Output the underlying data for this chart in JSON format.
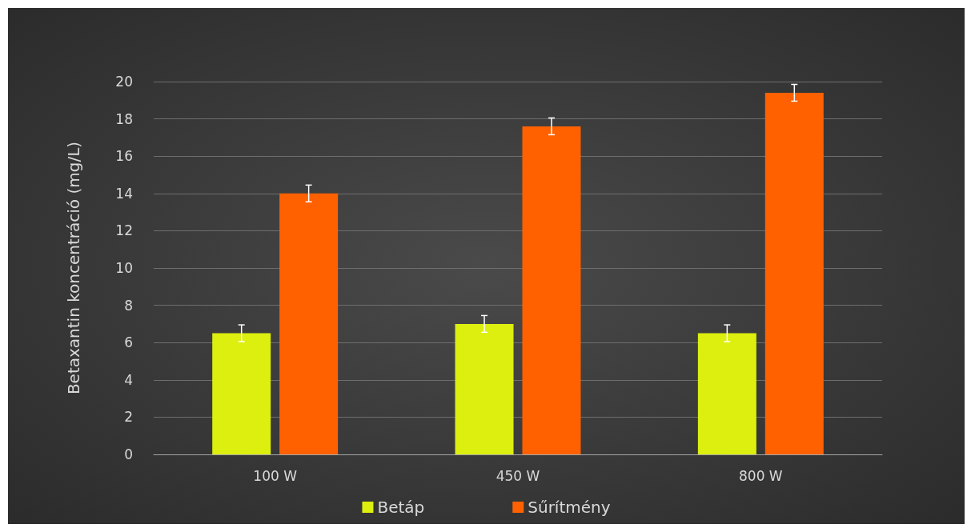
{
  "chart_data": {
    "type": "bar",
    "ylabel": "Betaxantin koncentráció (mg/L)",
    "categories": [
      "100 W",
      "450 W",
      "800 W"
    ],
    "series": [
      {
        "name": "Betáp",
        "color": "#dcef0e",
        "values": [
          6.5,
          7.0,
          6.5
        ],
        "errors": [
          0.45,
          0.45,
          0.45
        ]
      },
      {
        "name": "Sűrítmény",
        "color": "#ff6100",
        "values": [
          14.0,
          17.6,
          19.4
        ],
        "errors": [
          0.45,
          0.45,
          0.45
        ]
      }
    ],
    "ylim": [
      0,
      20
    ],
    "yticks": [
      0,
      2,
      4,
      6,
      8,
      10,
      12,
      14,
      16,
      18,
      20
    ],
    "grid": "y",
    "legend": "bottom"
  }
}
